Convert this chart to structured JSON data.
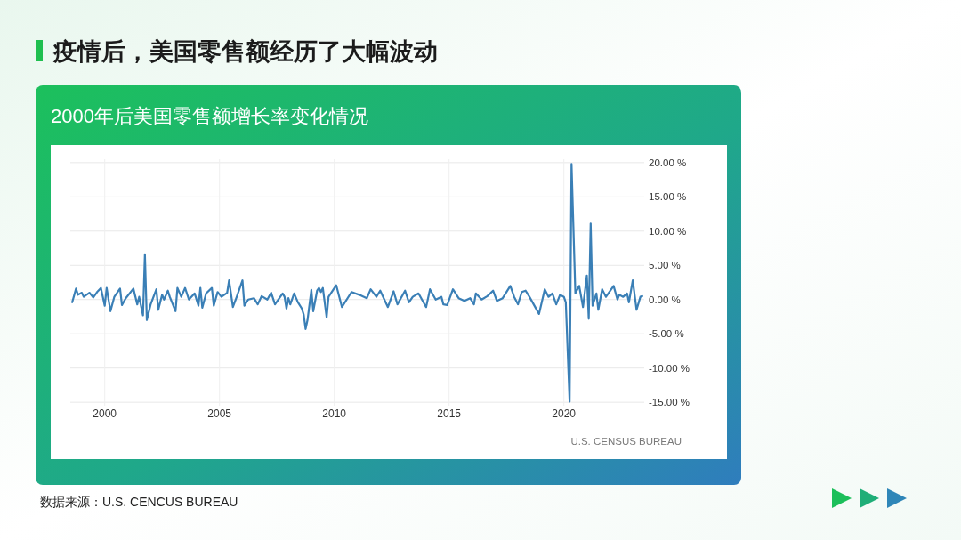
{
  "chart_data": {
    "type": "line",
    "title": "疫情后，美国零售额经历了大幅波动",
    "subtitle": "2000年后美国零售额增长率变化情况",
    "annotations": [
      "U.S. CENSUS BUREAU",
      "数据来源：U.S. CENCUS BUREAU"
    ],
    "x": [
      "1998-08",
      "1998-10",
      "1998-11",
      "1999-01",
      "1999-02",
      "1999-05",
      "1999-07",
      "1999-09",
      "1999-11",
      "2000-01",
      "2000-02",
      "2000-04",
      "2000-06",
      "2000-09",
      "2000-10",
      "2000-12",
      "2001-04",
      "2001-06",
      "2001-07",
      "2001-09",
      "2001-10",
      "2001-11",
      "2002-01",
      "2002-04",
      "2002-05",
      "2002-07",
      "2002-08",
      "2002-10",
      "2002-11",
      "2003-02",
      "2003-03",
      "2003-05",
      "2003-07",
      "2003-09",
      "2003-12",
      "2004-02",
      "2004-03",
      "2004-04",
      "2004-06",
      "2004-09",
      "2004-10",
      "2004-12",
      "2005-02",
      "2005-05",
      "2005-06",
      "2005-08",
      "2005-10",
      "2006-01",
      "2006-02",
      "2006-04",
      "2006-07",
      "2006-09",
      "2006-11",
      "2007-02",
      "2007-04",
      "2007-06",
      "2007-10",
      "2007-11",
      "2007-12",
      "2008-01",
      "2008-02",
      "2008-04",
      "2008-06",
      "2008-08",
      "2008-09",
      "2008-10",
      "2008-11",
      "2009-01",
      "2009-02",
      "2009-04",
      "2009-05",
      "2009-06",
      "2009-07",
      "2009-09",
      "2009-10",
      "2010-02",
      "2010-05",
      "2010-10",
      "2011-02",
      "2011-06",
      "2011-08",
      "2011-11",
      "2012-01",
      "2012-05",
      "2012-08",
      "2012-10",
      "2013-02",
      "2013-04",
      "2013-06",
      "2013-09",
      "2014-01",
      "2014-03",
      "2014-06",
      "2014-09",
      "2014-10",
      "2014-12",
      "2015-03",
      "2015-06",
      "2015-09",
      "2015-12",
      "2016-02",
      "2016-03",
      "2016-06",
      "2016-09",
      "2016-12",
      "2017-02",
      "2017-05",
      "2017-09",
      "2017-11",
      "2018-01",
      "2018-03",
      "2018-05",
      "2018-07",
      "2018-12",
      "2019-03",
      "2019-05",
      "2019-07",
      "2019-09",
      "2019-11",
      "2020-01",
      "2020-02",
      "2020-04",
      "2020-05",
      "2020-07",
      "2020-09",
      "2020-11",
      "2021-01",
      "2021-02",
      "2021-03",
      "2021-04",
      "2021-06",
      "2021-07",
      "2021-09",
      "2021-11",
      "2022-03",
      "2022-05",
      "2022-06",
      "2022-08",
      "2022-10",
      "2022-11",
      "2023-01",
      "2023-03",
      "2023-05",
      "2023-06"
    ],
    "series": [
      {
        "color": "#3a7fb6",
        "values": [
          -0.4,
          1.6,
          0.7,
          1.0,
          0.4,
          1.0,
          0.3,
          1.1,
          1.7,
          -0.9,
          1.7,
          -1.7,
          0.4,
          1.6,
          -0.8,
          0.2,
          1.6,
          -0.7,
          0.4,
          -2.3,
          6.6,
          -3.0,
          -0.7,
          1.5,
          -1.5,
          0.7,
          0.0,
          1.3,
          0.4,
          -1.7,
          1.7,
          0.4,
          1.7,
          0.0,
          0.9,
          -0.9,
          1.7,
          -1.2,
          0.9,
          1.7,
          -0.9,
          1.1,
          0.4,
          1.0,
          2.8,
          -1.1,
          0.4,
          2.8,
          -0.9,
          0.0,
          0.2,
          -0.7,
          0.5,
          0.0,
          1.0,
          -0.7,
          0.9,
          0.4,
          -1.3,
          0.2,
          -0.7,
          0.9,
          -0.4,
          -1.3,
          -2.2,
          -4.3,
          -3.0,
          1.4,
          -1.7,
          1.3,
          1.7,
          1.1,
          1.7,
          -2.6,
          0.4,
          2.1,
          -1.1,
          1.1,
          0.7,
          0.2,
          1.5,
          0.4,
          1.3,
          -1.1,
          1.2,
          -0.7,
          1.3,
          -0.4,
          0.4,
          0.9,
          -1.1,
          1.5,
          0.0,
          0.4,
          -0.7,
          -0.8,
          1.5,
          0.2,
          -0.2,
          0.2,
          -0.7,
          0.9,
          0.0,
          0.5,
          1.3,
          -0.2,
          0.2,
          2.0,
          0.4,
          -0.7,
          1.1,
          1.3,
          0.4,
          -2.1,
          1.5,
          0.4,
          0.9,
          -0.7,
          0.7,
          0.4,
          -0.4,
          -14.9,
          19.8,
          0.9,
          2.0,
          -1.1,
          3.5,
          -2.8,
          11.1,
          -0.9,
          0.9,
          -1.5,
          1.5,
          0.4,
          2.0,
          0.0,
          0.7,
          0.4,
          0.9,
          -0.4,
          2.8,
          -1.5,
          0.4,
          0.5
        ]
      }
    ],
    "xlim": [
      "1998-07",
      "2023-07"
    ],
    "xticks": [
      "2000",
      "2005",
      "2010",
      "2015",
      "2020"
    ],
    "ylim": [
      -15.5,
      20.5
    ],
    "yticks": [
      {
        "value": 20,
        "label": "20.00 %"
      },
      {
        "value": 15,
        "label": "15.00 %"
      },
      {
        "value": 10,
        "label": "10.00 %"
      },
      {
        "value": 5,
        "label": "5.00 %"
      },
      {
        "value": 0,
        "label": "0.00 %"
      },
      {
        "value": -5,
        "label": "-5.00 %"
      },
      {
        "value": -10,
        "label": "-10.00 %"
      },
      {
        "value": -15,
        "label": "-15.00 %"
      }
    ],
    "grid": true,
    "line_style": "solid"
  }
}
